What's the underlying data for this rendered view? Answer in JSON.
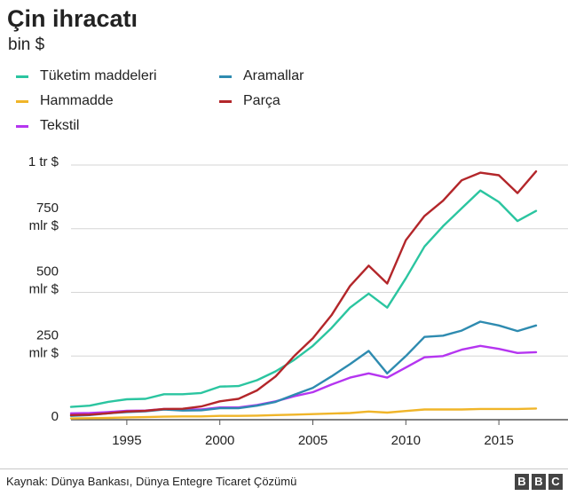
{
  "header": {
    "title": "Çin ihracatı",
    "subtitle": "bin $"
  },
  "chart_data": {
    "type": "line",
    "title": "Çin ihracatı",
    "subtitle": "bin $",
    "xlabel": "",
    "ylabel": "",
    "xlim": [
      1992,
      2018
    ],
    "ylim": [
      0,
      1000
    ],
    "x": [
      1992,
      1993,
      1994,
      1995,
      1996,
      1997,
      1998,
      1999,
      2000,
      2001,
      2002,
      2003,
      2004,
      2005,
      2006,
      2007,
      2008,
      2009,
      2010,
      2011,
      2012,
      2013,
      2014,
      2015,
      2016,
      2017
    ],
    "x_ticks": [
      {
        "value": 1995,
        "label": "1995"
      },
      {
        "value": 2000,
        "label": "2000"
      },
      {
        "value": 2005,
        "label": "2005"
      },
      {
        "value": 2010,
        "label": "2010"
      },
      {
        "value": 2015,
        "label": "2015"
      }
    ],
    "y_ticks": [
      {
        "value": 0,
        "lines": [
          "0"
        ]
      },
      {
        "value": 250,
        "lines": [
          "250",
          "mlr $"
        ]
      },
      {
        "value": 500,
        "lines": [
          "500",
          "mlr $"
        ]
      },
      {
        "value": 750,
        "lines": [
          "750",
          "mlr $"
        ]
      },
      {
        "value": 1000,
        "lines": [
          "1 tr $"
        ]
      }
    ],
    "grid": true,
    "series": [
      {
        "name": "Tüketim maddeleri",
        "color": "#2bc5a0",
        "values": [
          50,
          55,
          70,
          80,
          82,
          100,
          100,
          105,
          130,
          132,
          155,
          190,
          235,
          290,
          360,
          440,
          495,
          440,
          555,
          680,
          760,
          830,
          900,
          855,
          780,
          820
        ]
      },
      {
        "name": "Hammadde",
        "color": "#f0b529",
        "values": [
          5,
          6,
          7,
          9,
          10,
          12,
          13,
          13,
          15,
          15,
          16,
          18,
          20,
          22,
          24,
          26,
          32,
          28,
          34,
          40,
          40,
          40,
          42,
          42,
          42,
          44
        ]
      },
      {
        "name": "Tekstil",
        "color": "#b535f0",
        "values": [
          25,
          26,
          30,
          35,
          36,
          42,
          40,
          40,
          48,
          48,
          58,
          72,
          92,
          108,
          138,
          165,
          182,
          165,
          205,
          245,
          250,
          275,
          290,
          278,
          262,
          265
        ]
      },
      {
        "name": "Aramallar",
        "color": "#2e8bb0",
        "values": [
          15,
          18,
          25,
          30,
          33,
          40,
          36,
          37,
          45,
          45,
          55,
          70,
          98,
          125,
          170,
          218,
          270,
          182,
          250,
          325,
          330,
          350,
          385,
          370,
          348,
          370
        ]
      },
      {
        "name": "Parça",
        "color": "#b3262a",
        "values": [
          18,
          20,
          25,
          32,
          35,
          42,
          43,
          52,
          72,
          82,
          115,
          170,
          250,
          320,
          410,
          525,
          605,
          535,
          705,
          800,
          860,
          940,
          970,
          960,
          890,
          975
        ]
      }
    ],
    "legend": {
      "placement": "top-left",
      "order": [
        "Tüketim maddeleri",
        "Aramallar",
        "Hammadde",
        "Parça",
        "Tekstil"
      ]
    }
  },
  "footer": {
    "source": "Kaynak: Dünya Bankası, Dünya Entegre Ticaret Çözümü",
    "logo_letters": [
      "B",
      "B",
      "C"
    ]
  }
}
